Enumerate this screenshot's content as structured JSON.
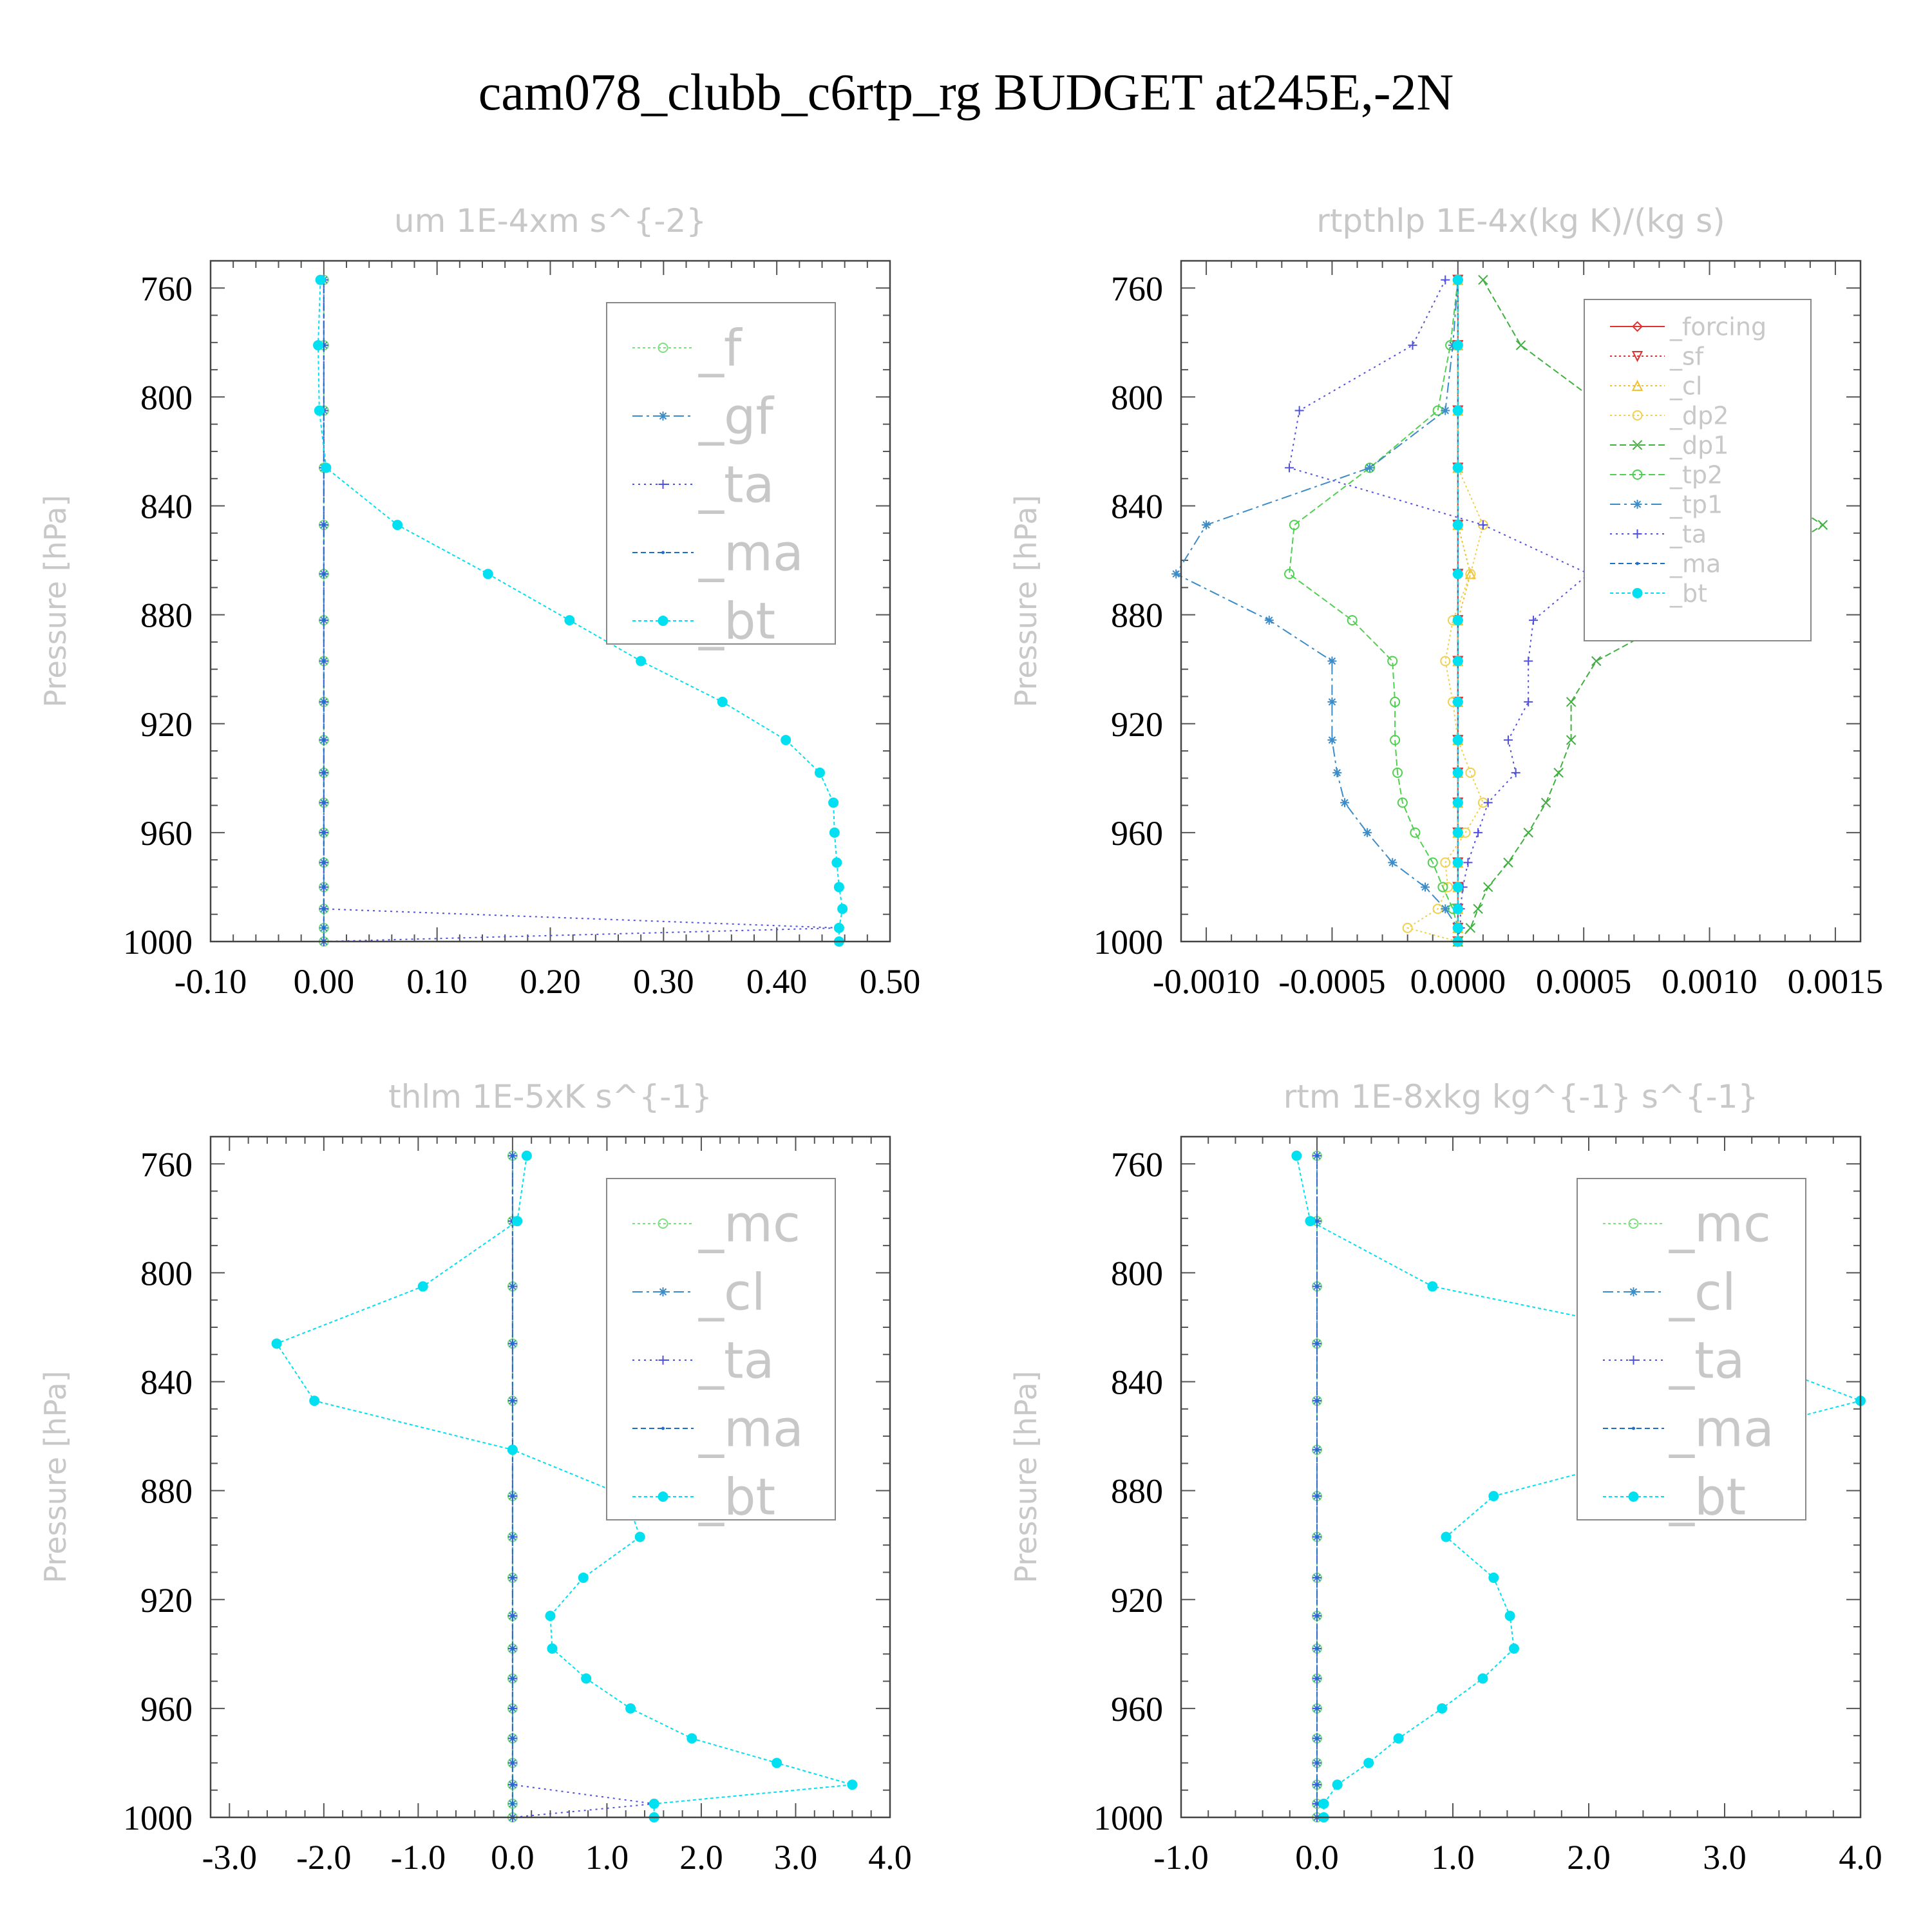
{
  "suptitle": "cam078_clubb_c6rtp_rg  BUDGET at245E,-2N",
  "chart_data": [
    {
      "type": "line",
      "title": "um  1E-4xm s^{-2}",
      "ylabel": "Pressure [hPa]",
      "xlim": [
        -0.1,
        0.5
      ],
      "ylim": [
        750,
        1000
      ],
      "y_inverted": true,
      "xticks": [
        "-0.10",
        "0.00",
        "0.10",
        "0.20",
        "0.30",
        "0.40",
        "0.50"
      ],
      "xtick_values": [
        -0.1,
        0.0,
        0.1,
        0.2,
        0.3,
        0.4,
        0.5
      ],
      "yticks": [
        "760",
        "800",
        "840",
        "880",
        "920",
        "960",
        "1000"
      ],
      "ytick_values": [
        760,
        800,
        840,
        880,
        920,
        960,
        1000
      ],
      "legend_position": "top-right",
      "legend_size": "large",
      "pressure": [
        757,
        781,
        805,
        826,
        847,
        865,
        882,
        897,
        912,
        926,
        938,
        949,
        960,
        971,
        980,
        988,
        995,
        1000
      ],
      "series": [
        {
          "name": "_f",
          "color": "#7ee07e",
          "marker": "circle-open",
          "dash": "4,4",
          "values": [
            0,
            0,
            0,
            0,
            0,
            0,
            0,
            0,
            0,
            0,
            0,
            0,
            0,
            0,
            0,
            0,
            0,
            0
          ]
        },
        {
          "name": "_gf",
          "color": "#3c8cc8",
          "marker": "star",
          "dash": "16,6,4,6",
          "values": [
            0,
            0,
            0,
            0,
            0,
            0,
            0,
            0,
            0,
            0,
            0,
            0,
            0,
            0,
            0,
            0,
            0,
            0
          ]
        },
        {
          "name": "_ta",
          "color": "#5050e0",
          "marker": "plus",
          "dash": "3,6",
          "values": [
            0,
            0,
            0,
            0,
            0,
            0,
            0,
            0,
            0,
            0,
            0,
            0,
            0,
            0,
            0,
            0,
            0.455,
            0.0
          ]
        },
        {
          "name": "_ma",
          "color": "#1e6ec8",
          "marker": "dot",
          "dash": "8,5",
          "values": [
            0,
            0,
            0,
            0,
            0,
            0,
            0,
            0,
            0,
            0,
            0,
            0,
            0,
            0,
            0,
            0,
            0,
            0
          ]
        },
        {
          "name": "_bt",
          "color": "#00e0f0",
          "marker": "filled",
          "dash": "5,4",
          "values": [
            -0.003,
            -0.005,
            -0.004,
            0.002,
            0.065,
            0.145,
            0.217,
            0.28,
            0.352,
            0.408,
            0.438,
            0.45,
            0.451,
            0.453,
            0.455,
            0.458,
            0.455,
            0.455
          ]
        }
      ]
    },
    {
      "type": "line",
      "title": "rtpthlp  1E-4x(kg K)/(kg s)",
      "ylabel": "Pressure [hPa]",
      "xlim": [
        -0.0011,
        0.0016
      ],
      "ylim": [
        750,
        1000
      ],
      "y_inverted": true,
      "xticks": [
        "-0.0010",
        "-0.0005",
        "0.0000",
        "0.0005",
        "0.0010",
        "0.0015"
      ],
      "xtick_values": [
        -0.001,
        -0.0005,
        0.0,
        0.0005,
        0.001,
        0.0015
      ],
      "yticks": [
        "760",
        "800",
        "840",
        "880",
        "920",
        "960",
        "1000"
      ],
      "ytick_values": [
        760,
        800,
        840,
        880,
        920,
        960,
        1000
      ],
      "legend_position": "top-right",
      "legend_size": "small",
      "pressure": [
        757,
        781,
        805,
        826,
        847,
        865,
        882,
        897,
        912,
        926,
        938,
        949,
        960,
        971,
        980,
        988,
        995,
        1000
      ],
      "series": [
        {
          "name": "_forcing",
          "color": "#e03030",
          "marker": "diamond-open",
          "dash": "",
          "values": [
            0,
            0,
            0,
            0,
            0,
            0,
            0,
            0,
            0,
            0,
            0,
            0,
            0,
            0,
            0,
            0,
            0,
            0
          ]
        },
        {
          "name": "_sf",
          "color": "#e03030",
          "marker": "triangle-down",
          "dash": "3,4",
          "values": [
            0,
            0,
            0,
            0,
            0,
            0,
            0,
            0,
            0,
            0,
            0,
            0,
            0,
            0,
            0,
            0,
            0,
            0
          ]
        },
        {
          "name": "_cl",
          "color": "#f0c030",
          "marker": "triangle-up",
          "dash": "3,4",
          "values": [
            0,
            0,
            0,
            0,
            0,
            5e-05,
            0,
            0,
            0,
            0,
            0,
            0,
            0,
            0,
            0,
            0,
            0,
            0
          ]
        },
        {
          "name": "_dp2",
          "color": "#f0d050",
          "marker": "circle-open",
          "dash": "3,4",
          "values": [
            0,
            0,
            0,
            0,
            0.0001,
            5e-05,
            -2e-05,
            -5e-05,
            -2e-05,
            0,
            5e-05,
            0.0001,
            3e-05,
            -5e-05,
            -4e-05,
            -8e-05,
            -0.0002,
            0
          ]
        },
        {
          "name": "_dp1",
          "color": "#40b040",
          "marker": "x",
          "dash": "10,5",
          "values": [
            0.0001,
            0.00025,
            0.0006,
            0.0011,
            0.00145,
            0.00115,
            0.00085,
            0.00055,
            0.00045,
            0.00045,
            0.0004,
            0.00035,
            0.00028,
            0.0002,
            0.00012,
            8e-05,
            5e-05,
            0
          ]
        },
        {
          "name": "_tp2",
          "color": "#50d050",
          "marker": "circle-open",
          "dash": "10,5",
          "values": [
            0,
            -3e-05,
            -8e-05,
            -0.00035,
            -0.00065,
            -0.00067,
            -0.00042,
            -0.00026,
            -0.00025,
            -0.00025,
            -0.00024,
            -0.00022,
            -0.00017,
            -0.0001,
            -6e-05,
            -2e-05,
            0,
            0
          ]
        },
        {
          "name": "_tp1",
          "color": "#3c8cc8",
          "marker": "star",
          "dash": "16,6,4,6",
          "values": [
            0,
            -2e-05,
            -5e-05,
            -0.00035,
            -0.001,
            -0.00112,
            -0.00075,
            -0.0005,
            -0.0005,
            -0.0005,
            -0.00048,
            -0.00045,
            -0.00036,
            -0.00026,
            -0.00013,
            -5e-05,
            0,
            0
          ]
        },
        {
          "name": "_ta",
          "color": "#5050e0",
          "marker": "plus",
          "dash": "3,6",
          "values": [
            -5e-05,
            -0.00018,
            -0.00063,
            -0.00067,
            0.0001,
            0.00052,
            0.0003,
            0.00028,
            0.00028,
            0.0002,
            0.00023,
            0.00012,
            8e-05,
            4e-05,
            2e-05,
            1e-05,
            1e-05,
            0
          ]
        },
        {
          "name": "_ma",
          "color": "#1e6ec8",
          "marker": "dot",
          "dash": "8,5",
          "values": [
            0,
            0,
            0,
            0,
            0,
            0,
            0,
            0,
            0,
            0,
            0,
            0,
            0,
            0,
            0,
            0,
            0,
            0
          ]
        },
        {
          "name": "_bt",
          "color": "#00e0f0",
          "marker": "filled",
          "dash": "5,4",
          "values": [
            0,
            0,
            0,
            0,
            0,
            0,
            0,
            0,
            0,
            0,
            0,
            0,
            0,
            0,
            0,
            0,
            0,
            0
          ]
        }
      ]
    },
    {
      "type": "line",
      "title": "thlm  1E-5xK s^{-1}",
      "ylabel": "Pressure [hPa]",
      "xlim": [
        -3.2,
        4.0
      ],
      "ylim": [
        750,
        1000
      ],
      "y_inverted": true,
      "xticks": [
        "-3.0",
        "-2.0",
        "-1.0",
        "0.0",
        "1.0",
        "2.0",
        "3.0",
        "4.0"
      ],
      "xtick_values": [
        -3.0,
        -2.0,
        -1.0,
        0.0,
        1.0,
        2.0,
        3.0,
        4.0
      ],
      "yticks": [
        "760",
        "800",
        "840",
        "880",
        "920",
        "960",
        "1000"
      ],
      "ytick_values": [
        760,
        800,
        840,
        880,
        920,
        960,
        1000
      ],
      "legend_position": "top-right",
      "legend_size": "large",
      "pressure": [
        757,
        781,
        805,
        826,
        847,
        865,
        882,
        897,
        912,
        926,
        938,
        949,
        960,
        971,
        980,
        988,
        995,
        1000
      ],
      "series": [
        {
          "name": "_mc",
          "color": "#7ee07e",
          "marker": "circle-open",
          "dash": "4,4",
          "values": [
            0,
            0,
            0,
            0,
            0,
            0,
            0,
            0,
            0,
            0,
            0,
            0,
            0,
            0,
            0,
            0,
            0,
            0
          ]
        },
        {
          "name": "_cl",
          "color": "#3c8cc8",
          "marker": "star",
          "dash": "16,6,4,6",
          "values": [
            0,
            0,
            0,
            0,
            0,
            0,
            0,
            0,
            0,
            0,
            0,
            0,
            0,
            0,
            0,
            0,
            0,
            0
          ]
        },
        {
          "name": "_ta",
          "color": "#5050e0",
          "marker": "plus",
          "dash": "3,6",
          "values": [
            0,
            0,
            0,
            0,
            0,
            0,
            0,
            0,
            0,
            0,
            0,
            0,
            0,
            0,
            0,
            0,
            1.5,
            0
          ]
        },
        {
          "name": "_ma",
          "color": "#1e6ec8",
          "marker": "dot",
          "dash": "8,5",
          "values": [
            0,
            0,
            0,
            0,
            0,
            0,
            0,
            0,
            0,
            0,
            0,
            0,
            0,
            0,
            0,
            0,
            0,
            0
          ]
        },
        {
          "name": "_bt",
          "color": "#00e0f0",
          "marker": "filled",
          "dash": "5,4",
          "values": [
            0.15,
            0.05,
            -0.95,
            -2.5,
            -2.1,
            0.0,
            1.2,
            1.35,
            0.75,
            0.4,
            0.42,
            0.78,
            1.25,
            1.9,
            2.8,
            3.6,
            1.5,
            1.5
          ]
        }
      ]
    },
    {
      "type": "line",
      "title": "rtm  1E-8xkg kg^{-1} s^{-1}",
      "ylabel": "Pressure [hPa]",
      "xlim": [
        -1.0,
        4.0
      ],
      "ylim": [
        750,
        1000
      ],
      "y_inverted": true,
      "xticks": [
        "-1.0",
        "0.0",
        "1.0",
        "2.0",
        "3.0",
        "4.0"
      ],
      "xtick_values": [
        -1.0,
        0.0,
        1.0,
        2.0,
        3.0,
        4.0
      ],
      "yticks": [
        "760",
        "800",
        "840",
        "880",
        "920",
        "960",
        "1000"
      ],
      "ytick_values": [
        760,
        800,
        840,
        880,
        920,
        960,
        1000
      ],
      "legend_position": "top-right",
      "legend_size": "large",
      "pressure": [
        757,
        781,
        805,
        826,
        847,
        865,
        882,
        897,
        912,
        926,
        938,
        949,
        960,
        971,
        980,
        988,
        995,
        1000
      ],
      "series": [
        {
          "name": "_mc",
          "color": "#7ee07e",
          "marker": "circle-open",
          "dash": "4,4",
          "values": [
            0,
            0,
            0,
            0,
            0,
            0,
            0,
            0,
            0,
            0,
            0,
            0,
            0,
            0,
            0,
            0,
            0,
            0
          ]
        },
        {
          "name": "_cl",
          "color": "#3c8cc8",
          "marker": "star",
          "dash": "16,6,4,6",
          "values": [
            0,
            0,
            0,
            0,
            0,
            0,
            0,
            0,
            0,
            0,
            0,
            0,
            0,
            0,
            0,
            0,
            0,
            0
          ]
        },
        {
          "name": "_ta",
          "color": "#5050e0",
          "marker": "plus",
          "dash": "3,6",
          "values": [
            0,
            0,
            0,
            0,
            0,
            0,
            0,
            0,
            0,
            0,
            0,
            0,
            0,
            0,
            0,
            0,
            0,
            0
          ]
        },
        {
          "name": "_ma",
          "color": "#1e6ec8",
          "marker": "dot",
          "dash": "8,5",
          "values": [
            0,
            0,
            0,
            0,
            0,
            0,
            0,
            0,
            0,
            0,
            0,
            0,
            0,
            0,
            0,
            0,
            0,
            0
          ]
        },
        {
          "name": "_bt",
          "color": "#00e0f0",
          "marker": "filled",
          "dash": "5,4",
          "values": [
            -0.15,
            -0.05,
            0.85,
            2.9,
            4.0,
            2.6,
            1.3,
            0.95,
            1.3,
            1.42,
            1.45,
            1.22,
            0.92,
            0.6,
            0.38,
            0.15,
            0.05,
            0.05
          ]
        }
      ]
    }
  ]
}
